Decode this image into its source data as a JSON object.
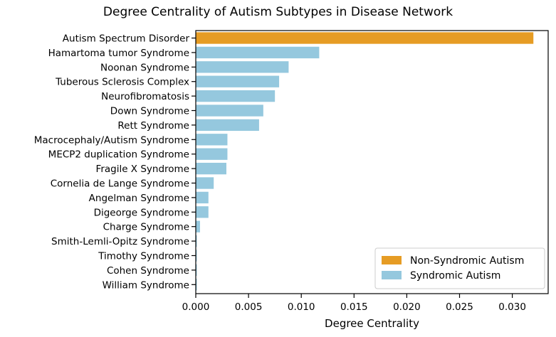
{
  "chart_data": {
    "type": "bar",
    "orientation": "horizontal",
    "title": "Degree Centrality of Autism Subtypes in Disease Network",
    "xlabel": "Degree Centrality",
    "ylabel": "",
    "xlim": [
      0,
      0.0334
    ],
    "xticks": [
      "0.000",
      "0.005",
      "0.010",
      "0.015",
      "0.020",
      "0.025",
      "0.030"
    ],
    "xtick_values": [
      0,
      0.005,
      0.01,
      0.015,
      0.02,
      0.025,
      0.03
    ],
    "categories": [
      "Autism Spectrum Disorder",
      "Hamartoma tumor Syndrome",
      "Noonan Syndrome",
      "Tuberous Sclerosis Complex",
      "Neurofibromatosis",
      "Down Syndrome",
      "Rett Syndrome",
      "Macrocephaly/Autism Syndrome ",
      "MECP2 duplication Syndrome",
      "Fragile X Syndrome",
      "Cornelia de Lange Syndrome",
      "Angelman Syndrome",
      "Digeorge Syndrome",
      "Charge Syndrome",
      "Smith-Lemli-Opitz Syndrome",
      "Timothy Syndrome",
      "Cohen Syndrome",
      "William Syndrome"
    ],
    "values": [
      0.032,
      0.0117,
      0.0088,
      0.0079,
      0.0075,
      0.0064,
      0.006,
      0.003,
      0.003,
      0.0029,
      0.0017,
      0.0012,
      0.0012,
      0.0004,
      0.0001,
      0.0001,
      0.0001,
      0.0001
    ],
    "groups": [
      "Non-Syndromic Autism",
      "Syndromic Autism",
      "Syndromic Autism",
      "Syndromic Autism",
      "Syndromic Autism",
      "Syndromic Autism",
      "Syndromic Autism",
      "Syndromic Autism",
      "Syndromic Autism",
      "Syndromic Autism",
      "Syndromic Autism",
      "Syndromic Autism",
      "Syndromic Autism",
      "Syndromic Autism",
      "Syndromic Autism",
      "Syndromic Autism",
      "Syndromic Autism",
      "Syndromic Autism"
    ],
    "legend": {
      "position": "lower-right",
      "entries": [
        {
          "label": "Non-Syndromic Autism",
          "color": "#e69c24"
        },
        {
          "label": "Syndromic Autism",
          "color": "#95c8de"
        }
      ]
    },
    "colors": {
      "Non-Syndromic Autism": "#e69c24",
      "Syndromic Autism": "#95c8de"
    },
    "grid": false
  }
}
